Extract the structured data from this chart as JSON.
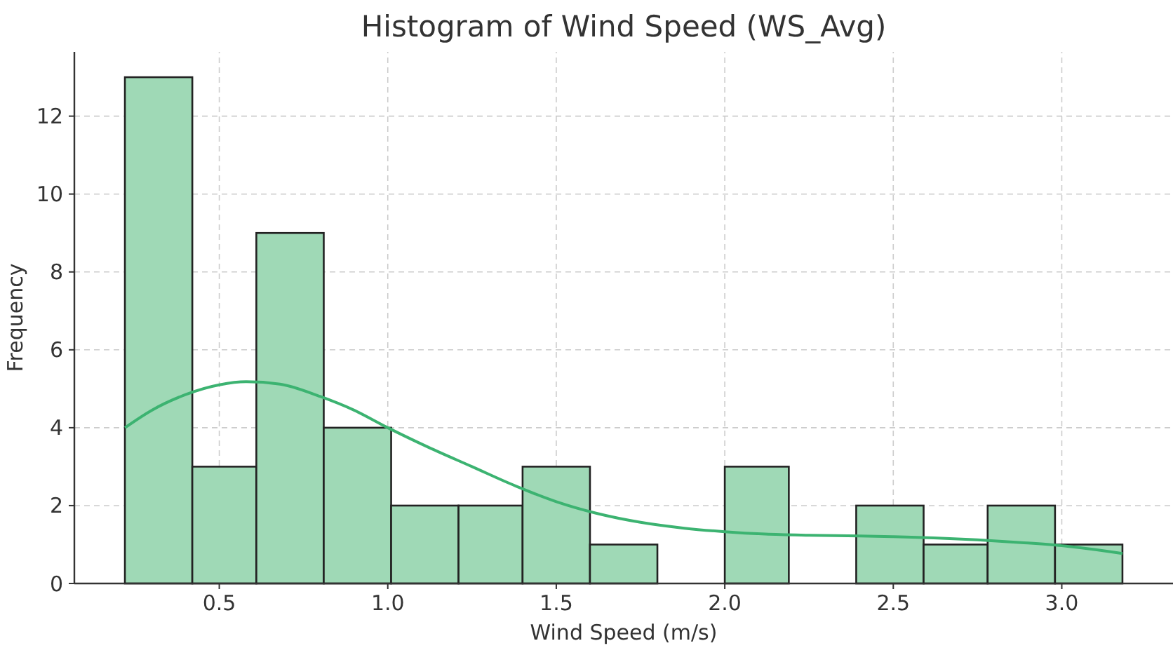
{
  "chart_data": {
    "type": "histogram",
    "title": "Histogram of Wind Speed (WS_Avg)",
    "xlabel": "Wind Speed (m/s)",
    "ylabel": "Frequency",
    "bins": [
      0.22,
      0.42,
      0.61,
      0.81,
      1.01,
      1.21,
      1.4,
      1.6,
      1.8,
      2.0,
      2.19,
      2.39,
      2.59,
      2.78,
      2.98,
      3.18
    ],
    "values": [
      13,
      3,
      9,
      4,
      2,
      2,
      3,
      1,
      0,
      3,
      0,
      2,
      1,
      2,
      1
    ],
    "color": "#9fd9b6",
    "series": [
      {
        "type": "line",
        "color": "#3cb371",
        "x": [
          0.22,
          0.3,
          0.4,
          0.5,
          0.58,
          0.68,
          0.8,
          0.9,
          1.0,
          1.12,
          1.25,
          1.38,
          1.5,
          1.62,
          1.75,
          1.88,
          2.0,
          2.12,
          2.25,
          2.4,
          2.5,
          2.62,
          2.75,
          2.88,
          3.0,
          3.1,
          3.18
        ],
        "values": [
          4.0,
          4.45,
          4.85,
          5.1,
          5.18,
          5.12,
          4.8,
          4.45,
          4.0,
          3.5,
          3.0,
          2.5,
          2.1,
          1.8,
          1.57,
          1.42,
          1.33,
          1.27,
          1.24,
          1.22,
          1.2,
          1.17,
          1.12,
          1.05,
          0.97,
          0.87,
          0.77
        ]
      }
    ],
    "xlim": [
      0.07,
      3.33
    ],
    "xticks": [
      {
        "value": 0.5,
        "label": "0.5"
      },
      {
        "value": 1,
        "label": "1.0"
      },
      {
        "value": 1.5,
        "label": "1.5"
      },
      {
        "value": 2,
        "label": "2.0"
      },
      {
        "value": 2.5,
        "label": "2.5"
      },
      {
        "value": 3,
        "label": "3.0"
      }
    ],
    "ylim": [
      0,
      13.65
    ],
    "yticks": [
      0,
      2,
      4,
      6,
      8,
      10,
      12
    ],
    "grid": true,
    "marker": "none",
    "line_style": "solid"
  }
}
